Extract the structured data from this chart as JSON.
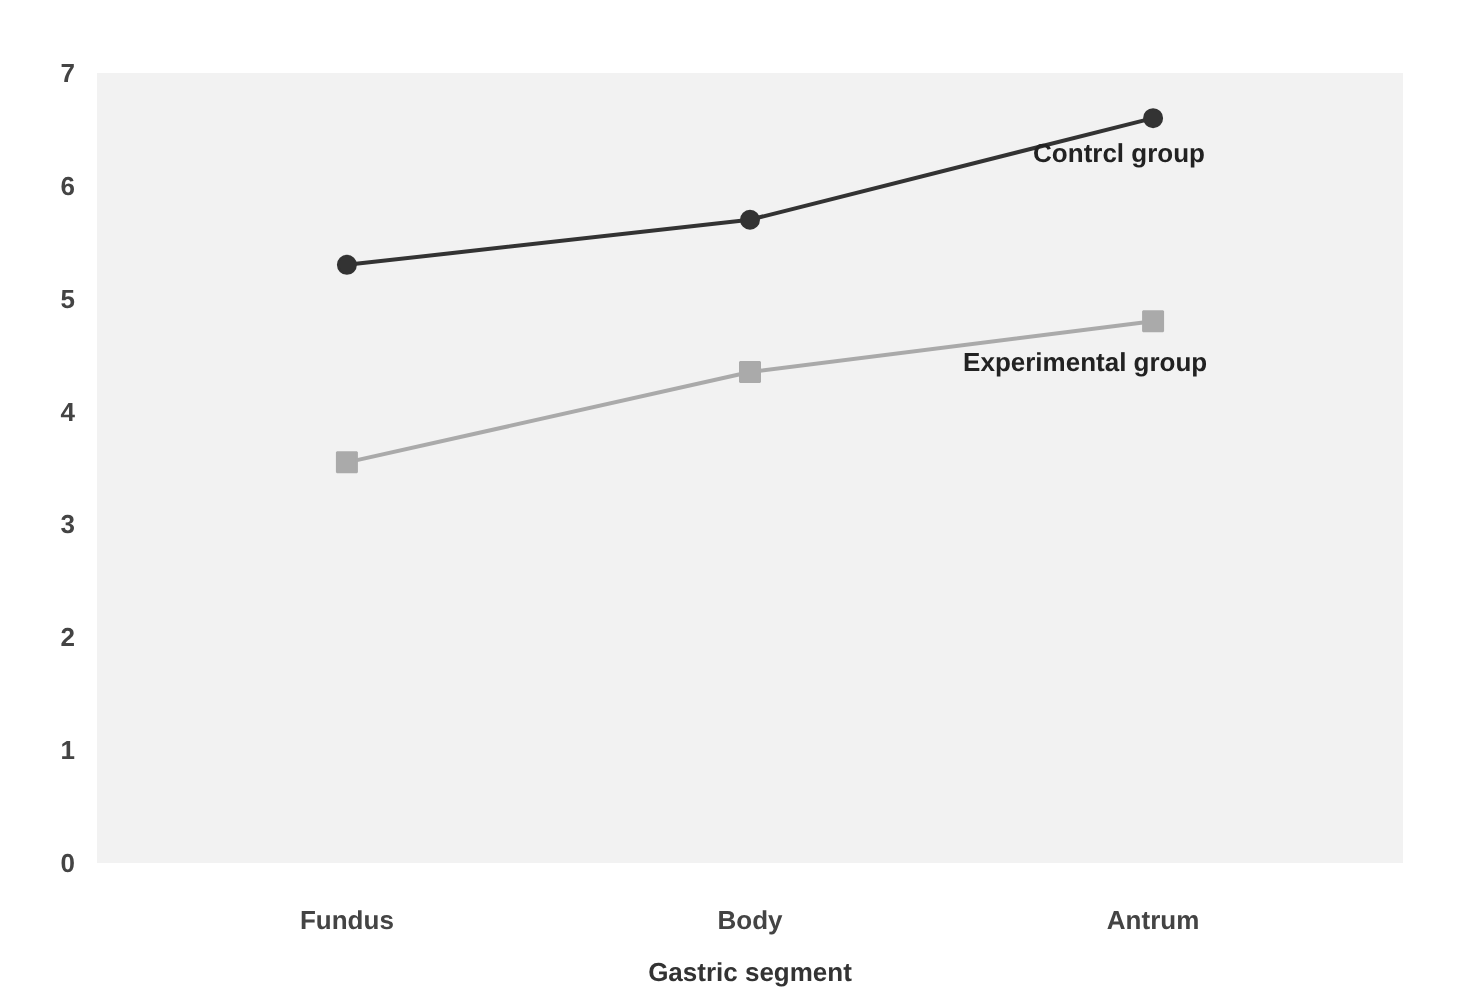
{
  "chart_data": {
    "type": "line",
    "xlabel": "Gastric segment",
    "categories": [
      "Fundus",
      "Body",
      "Antrum"
    ],
    "series": [
      {
        "name": "Contrcl group",
        "color": "#333333",
        "marker": "circle",
        "values": [
          5.3,
          5.7,
          6.6
        ]
      },
      {
        "name": "Experimental group",
        "color": "#aaaaaa",
        "marker": "square",
        "values": [
          3.55,
          4.35,
          4.8
        ]
      }
    ],
    "ylim": [
      0,
      7
    ],
    "yticks": [
      0,
      1,
      2,
      3,
      4,
      5,
      6,
      7
    ],
    "grid": false
  }
}
